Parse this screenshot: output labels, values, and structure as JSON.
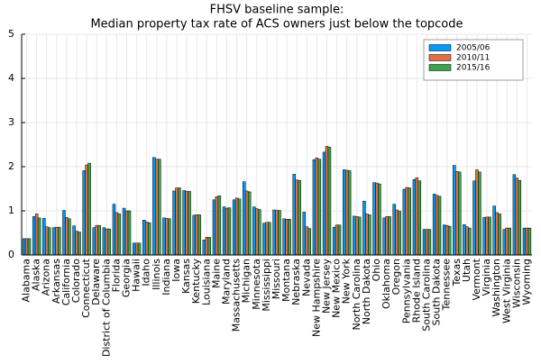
{
  "chart_data": {
    "type": "bar",
    "title": "FHSV baseline sample:",
    "subtitle": "Median property tax rate of ACS owners just below the topcode",
    "categories": [
      "Alabama",
      "Alaska",
      "Arizona",
      "Arkansas",
      "California",
      "Colorado",
      "Connecticut",
      "Delaware",
      "District of Columbia",
      "Florida",
      "Georgia",
      "Hawaii",
      "Idaho",
      "Illinois",
      "Indiana",
      "Iowa",
      "Kansas",
      "Kentucky",
      "Louisiana",
      "Maine",
      "Maryland",
      "Massachusetts",
      "Michigan",
      "Minnesota",
      "Mississippi",
      "Missouri",
      "Montana",
      "Nebraska",
      "Nevada",
      "New Hampshire",
      "New Jersey",
      "New Mexico",
      "New York",
      "North Carolina",
      "North Dakota",
      "Ohio",
      "Oklahoma",
      "Oregon",
      "Pennsylvania",
      "Rhode Island",
      "South Carolina",
      "South Dakota",
      "Tennessee",
      "Texas",
      "Utah",
      "Vermont",
      "Virginia",
      "Washington",
      "West Virginia",
      "Wisconsin",
      "Wyoming"
    ],
    "series": [
      {
        "name": "2005/06",
        "color": "#009af9",
        "values": [
          0.37,
          0.87,
          0.83,
          0.62,
          1.01,
          0.66,
          1.91,
          0.62,
          0.62,
          1.15,
          1.06,
          0.27,
          0.79,
          2.21,
          0.84,
          1.45,
          1.46,
          0.9,
          0.34,
          1.25,
          1.09,
          1.25,
          1.66,
          1.09,
          0.72,
          1.02,
          0.82,
          1.83,
          0.97,
          2.16,
          2.33,
          0.63,
          1.93,
          0.88,
          1.22,
          1.64,
          0.84,
          1.15,
          1.49,
          1.71,
          0.58,
          1.38,
          0.68,
          2.03,
          0.69,
          1.68,
          0.85,
          1.11,
          0.58,
          1.82,
          0.61
        ]
      },
      {
        "name": "2010/11",
        "color": "#e26f46",
        "values": [
          0.37,
          0.93,
          0.64,
          0.63,
          0.85,
          0.54,
          2.04,
          0.67,
          0.59,
          0.96,
          1.0,
          0.27,
          0.75,
          2.17,
          0.83,
          1.52,
          1.44,
          0.91,
          0.4,
          1.32,
          1.06,
          1.29,
          1.45,
          1.05,
          0.74,
          1.01,
          0.81,
          1.7,
          0.64,
          2.2,
          2.46,
          0.68,
          1.92,
          0.87,
          0.93,
          1.63,
          0.87,
          1.02,
          1.53,
          1.75,
          0.58,
          1.35,
          0.67,
          1.89,
          0.64,
          1.93,
          0.86,
          0.96,
          0.61,
          1.74,
          0.61
        ]
      },
      {
        "name": "2015/16",
        "color": "#3da44d",
        "values": [
          0.37,
          0.84,
          0.62,
          0.63,
          0.82,
          0.52,
          2.08,
          0.67,
          0.59,
          0.93,
          1.0,
          0.27,
          0.73,
          2.17,
          0.82,
          1.52,
          1.44,
          0.91,
          0.4,
          1.34,
          1.07,
          1.27,
          1.43,
          1.03,
          0.74,
          1.01,
          0.81,
          1.69,
          0.6,
          2.17,
          2.44,
          0.68,
          1.91,
          0.86,
          0.91,
          1.61,
          0.87,
          0.99,
          1.52,
          1.68,
          0.58,
          1.33,
          0.65,
          1.88,
          0.61,
          1.88,
          0.86,
          0.93,
          0.61,
          1.69,
          0.61
        ]
      }
    ],
    "ylim": [
      0,
      5
    ],
    "yticks": [
      0,
      1,
      2,
      3,
      4,
      5
    ],
    "grid": true,
    "legend": "top-right"
  }
}
